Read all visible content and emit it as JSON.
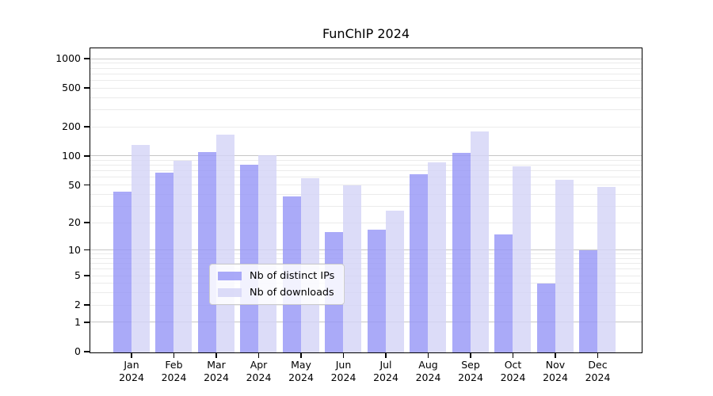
{
  "title": "FunChIP 2024",
  "chart_data": {
    "type": "bar",
    "title": "FunChIP 2024",
    "scale": "log10(1+x)",
    "categories": [
      "Jan 2024",
      "Feb 2024",
      "Mar 2024",
      "Apr 2024",
      "May 2024",
      "Jun 2024",
      "Jul 2024",
      "Aug 2024",
      "Sep 2024",
      "Oct 2024",
      "Nov 2024",
      "Dec 2024"
    ],
    "series": [
      {
        "name": "Nb of distinct IPs",
        "color": "rgba(149,149,246,0.8)",
        "solid_color": "#aaaaf8",
        "values": [
          43,
          68,
          110,
          82,
          38,
          16,
          17,
          65,
          108,
          15,
          4,
          10
        ]
      },
      {
        "name": "Nb of downloads",
        "color": "rgba(211,211,246,0.8)",
        "solid_color": "#dcdcf8",
        "values": [
          132,
          90,
          167,
          103,
          59,
          50,
          27,
          87,
          180,
          79,
          57,
          48
        ]
      }
    ],
    "yticks": [
      0,
      1,
      2,
      5,
      10,
      20,
      50,
      100,
      200,
      500,
      1000
    ],
    "ylim": [
      0,
      1270
    ],
    "grid": true,
    "legend_position": "inside bottom-center"
  },
  "colors": {
    "grid_major": "#c6c6c6",
    "grid_minor": "#ebebeb",
    "axis": "#000000",
    "legend_border": "#cccccc"
  }
}
